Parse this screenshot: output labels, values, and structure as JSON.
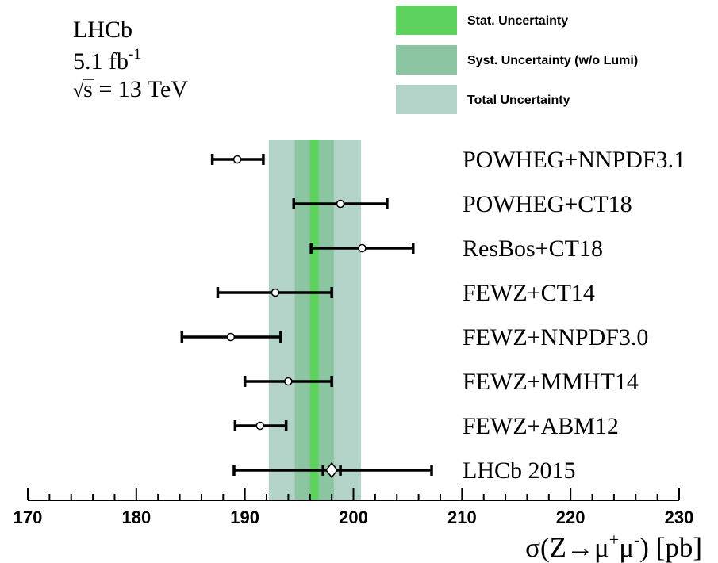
{
  "chart_data": {
    "type": "scatter",
    "experiment": {
      "line1": "LHCb",
      "lumi_value": "5.1 fb",
      "lumi_exp": "-1",
      "energy_root": "√",
      "energy_rest": "s = 13 TeV"
    },
    "legend": {
      "placement": "top-right",
      "entries": [
        {
          "label": "Stat. Uncertainty",
          "color": "#5dd35d"
        },
        {
          "label": "Syst. Uncertainty (w/o Lumi)",
          "color": "#8cc5a2"
        },
        {
          "label": "Total Uncertainty",
          "color": "#b3d3c8"
        }
      ]
    },
    "measurement": {
      "central": 196.4,
      "stat": [
        196.0,
        196.8
      ],
      "syst": [
        194.6,
        198.2
      ],
      "total": [
        192.2,
        200.7
      ]
    },
    "xaxis": {
      "min": 170,
      "max": 230,
      "major_ticks": [
        170,
        180,
        190,
        200,
        210,
        220,
        230
      ],
      "tick_labels": [
        "170",
        "180",
        "190",
        "200",
        "210",
        "220",
        "230"
      ],
      "label_parts": {
        "pre": "σ(Z→μ",
        "sup1": "+",
        "mid": "μ",
        "sup2": "-",
        "post": ") [pb]"
      }
    },
    "predictions": [
      {
        "name": "POWHEG+NNPDF3.1",
        "value": 189.3,
        "low": 187.0,
        "high": 191.7
      },
      {
        "name": "POWHEG+CT18",
        "value": 198.8,
        "low": 194.5,
        "high": 203.1
      },
      {
        "name": "ResBos+CT18",
        "value": 200.8,
        "low": 196.1,
        "high": 205.5
      },
      {
        "name": "FEWZ+CT14",
        "value": 192.8,
        "low": 187.5,
        "high": 198.0
      },
      {
        "name": "FEWZ+NNPDF3.0",
        "value": 188.7,
        "low": 184.2,
        "high": 193.3
      },
      {
        "name": "FEWZ+MMHT14",
        "value": 194.0,
        "low": 190.0,
        "high": 198.0
      },
      {
        "name": "FEWZ+ABM12",
        "value": 191.4,
        "low": 189.1,
        "high": 193.8
      },
      {
        "name": "LHCb 2015",
        "value": 198.0,
        "low": 189.0,
        "high": 207.2,
        "inner_low": 197.2,
        "inner_high": 198.8,
        "marker": "diamond"
      }
    ]
  }
}
